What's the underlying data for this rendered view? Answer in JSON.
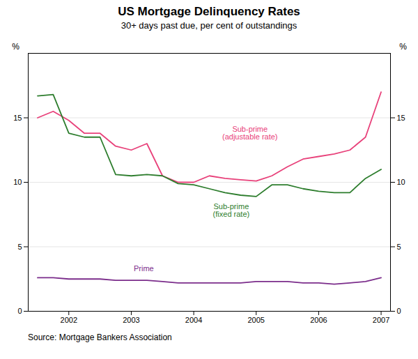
{
  "chart_data": {
    "type": "line",
    "title": "US Mortgage Delinquency Rates",
    "subtitle": "30+ days past due, per cent of outstandings",
    "source": "Source: Mortgage Bankers Association",
    "x": [
      2001.5,
      2001.75,
      2002.0,
      2002.25,
      2002.5,
      2002.75,
      2003.0,
      2003.25,
      2003.5,
      2003.75,
      2004.0,
      2004.25,
      2004.5,
      2004.75,
      2005.0,
      2005.25,
      2005.5,
      2005.75,
      2006.0,
      2006.25,
      2006.5,
      2006.75,
      2007.0
    ],
    "xlim": [
      2001.35,
      2007.15
    ],
    "xticks": [
      2002,
      2003,
      2004,
      2005,
      2006,
      2007
    ],
    "ylim": [
      0,
      20
    ],
    "yticks": [
      0,
      5,
      10,
      15
    ],
    "y2lim": [
      0,
      20
    ],
    "y2ticks": [
      0,
      5,
      10,
      15
    ],
    "y_label": "%",
    "y2_label": "%",
    "grid": true,
    "series": [
      {
        "name": "Sub-prime\n(adjustable rate)",
        "color": "#e8417a",
        "label_x": 2004.9,
        "label_y": 13.8,
        "values": [
          15.0,
          15.5,
          14.8,
          13.8,
          13.8,
          12.8,
          12.5,
          13.0,
          10.5,
          10.0,
          10.0,
          10.5,
          10.3,
          10.2,
          10.1,
          10.5,
          11.2,
          11.8,
          12.0,
          12.2,
          12.5,
          13.5,
          17.0
        ]
      },
      {
        "name": "Sub-prime\n(fixed rate)",
        "color": "#2d7d2d",
        "label_x": 2004.6,
        "label_y": 7.8,
        "values": [
          16.7,
          16.8,
          13.8,
          13.5,
          13.5,
          10.6,
          10.5,
          10.6,
          10.5,
          9.9,
          9.8,
          9.5,
          9.2,
          9.0,
          8.9,
          9.8,
          9.8,
          9.5,
          9.3,
          9.2,
          9.2,
          10.3,
          11.0
        ]
      },
      {
        "name": "Prime",
        "color": "#7b2d8b",
        "label_x": 2003.2,
        "label_y": 3.3,
        "values": [
          2.6,
          2.6,
          2.5,
          2.5,
          2.5,
          2.4,
          2.4,
          2.4,
          2.3,
          2.2,
          2.2,
          2.2,
          2.2,
          2.2,
          2.3,
          2.3,
          2.3,
          2.2,
          2.2,
          2.1,
          2.2,
          2.3,
          2.6
        ]
      }
    ]
  }
}
